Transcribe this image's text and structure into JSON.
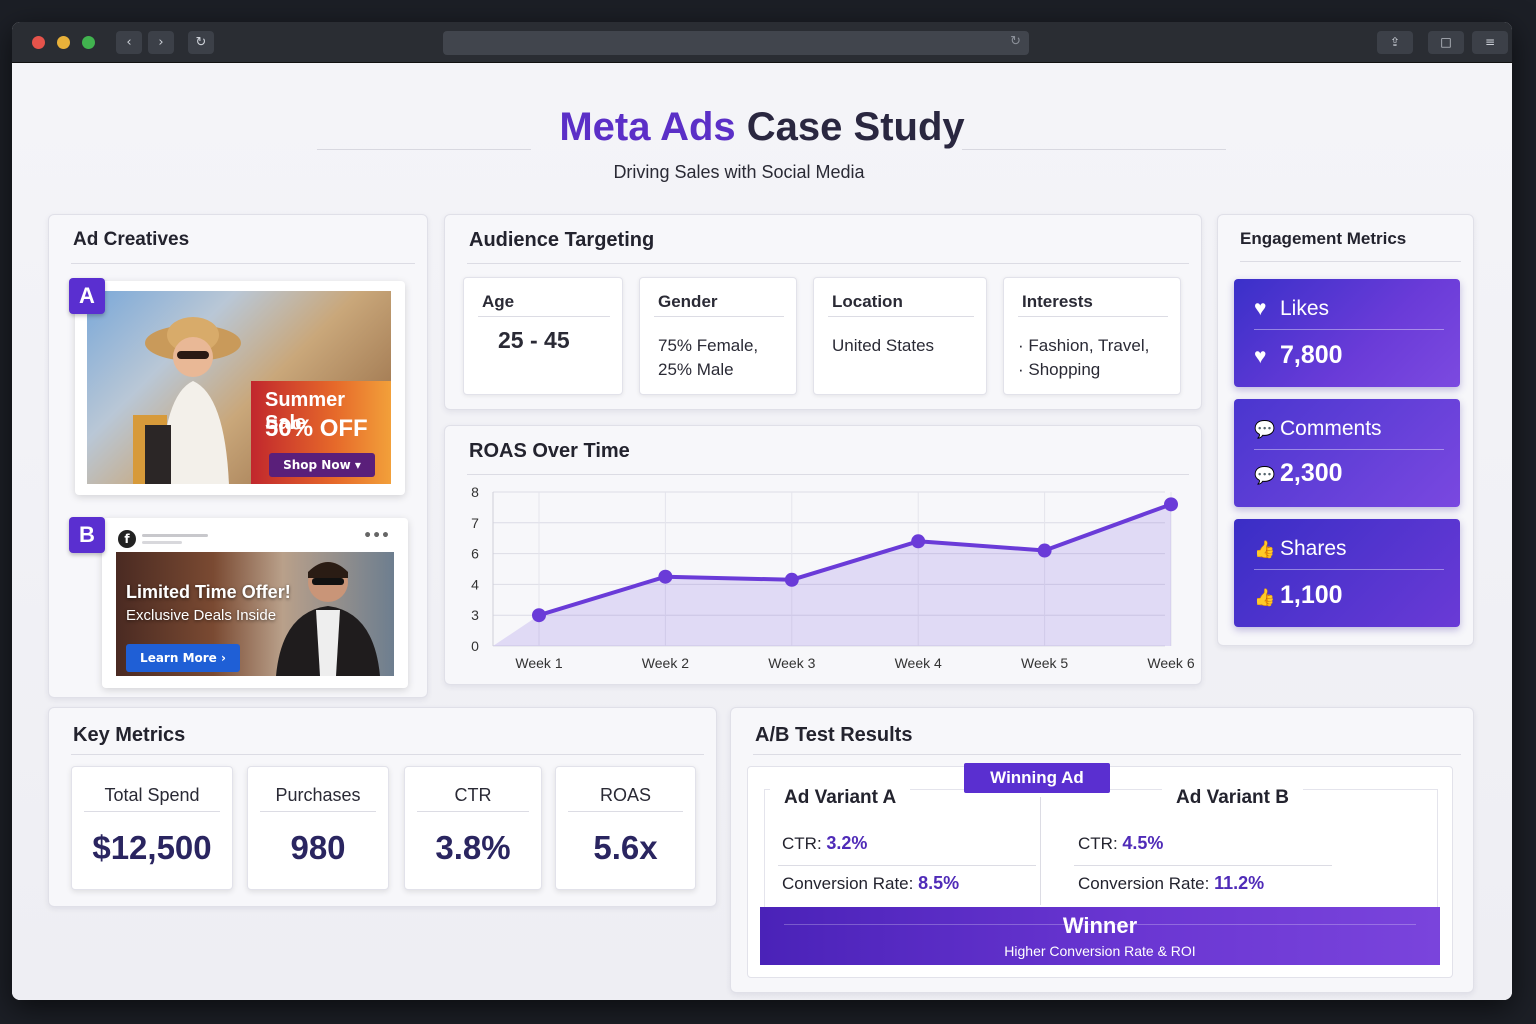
{
  "browser": {
    "back_glyph": "‹",
    "forward_glyph": "›",
    "reload_glyph": "↻",
    "url_reload_glyph": "↻",
    "share_glyph": "⇪",
    "window_glyph": "□",
    "menu_glyph": "≡"
  },
  "header": {
    "title_accent": "Meta Ads",
    "title_rest": " Case Study",
    "subtitle": "Driving Sales with Social Media"
  },
  "ad_creatives": {
    "title": "Ad Creatives",
    "variant_a": {
      "tag": "A",
      "headline": "Summer Sale",
      "offer": "50% OFF",
      "button": "Shop Now ▾"
    },
    "variant_b": {
      "tag": "B",
      "fb_glyph": "f",
      "more_glyph": "•••",
      "headline": "Limited Time Offer!",
      "subline": "Exclusive Deals Inside",
      "button": "Learn More ›"
    }
  },
  "audience": {
    "title": "Audience Targeting",
    "items": [
      {
        "label": "Age",
        "value": "25 - 45"
      },
      {
        "label": "Gender",
        "value_line1": "75% Female,",
        "value_line2": "25% Male"
      },
      {
        "label": "Location",
        "value": "United States"
      },
      {
        "label": "Interests",
        "value_line1": "· Fashion, Travel,",
        "value_line2": "· Shopping"
      }
    ]
  },
  "engagement": {
    "title": "Engagement Metrics",
    "items": [
      {
        "label": "Likes",
        "value": "7,800",
        "icon": "heart-icon",
        "glyph": "♥"
      },
      {
        "label": "Comments",
        "value": "2,300",
        "icon": "comment-icon",
        "glyph": "💬"
      },
      {
        "label": "Shares",
        "value": "1,100",
        "icon": "thumbs-up-icon",
        "glyph": "👍"
      }
    ]
  },
  "chart_data": {
    "type": "area",
    "title": "ROAS Over Time",
    "categories": [
      "Week 1",
      "Week 2",
      "Week 3",
      "Week 4",
      "Week 5",
      "Week 6"
    ],
    "values": [
      3.0,
      4.5,
      4.3,
      6.4,
      6.1,
      7.6
    ],
    "y_ticks": [
      "0",
      "3",
      "4",
      "6",
      "7",
      "8"
    ],
    "ylim": [
      0,
      8
    ],
    "grid": true,
    "color": "#6a3bd8"
  },
  "key_metrics": {
    "title": "Key Metrics",
    "items": [
      {
        "label": "Total Spend",
        "value": "$12,500"
      },
      {
        "label": "Purchases",
        "value": "980"
      },
      {
        "label": "CTR",
        "value": "3.8%"
      },
      {
        "label": "ROAS",
        "value": "5.6x"
      }
    ]
  },
  "ab_test": {
    "title": "A/B Test Results",
    "winning_tag": "Winning Ad",
    "variant_a": {
      "name": "Ad Variant A",
      "ctr_label": "CTR:",
      "ctr": "3.2%",
      "conv_label": "Conversion Rate:",
      "conv": "8.5%"
    },
    "variant_b": {
      "name": "Ad Variant B",
      "ctr_label": "CTR:",
      "ctr": "4.5%",
      "conv_label": "Conversion Rate:",
      "conv": "11.2%"
    },
    "winner_title": "Winner",
    "winner_subtitle": "Higher Conversion Rate & ROI"
  },
  "colors": {
    "accent": "#5b2fc7",
    "engagement_card": "#4a33cf"
  }
}
